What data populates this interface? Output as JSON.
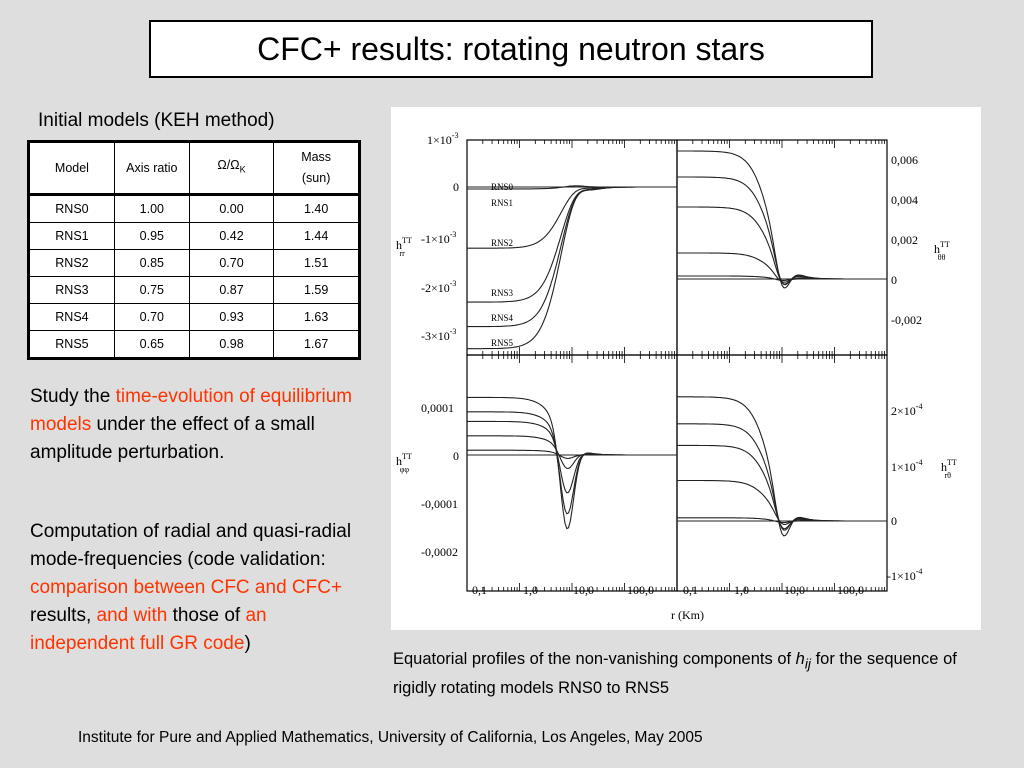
{
  "slide": {
    "title": "CFC+ results: rotating neutron stars",
    "footer": "Institute for Pure and Applied Mathematics, University of California, Los Angeles, May 2005"
  },
  "models": {
    "heading": "Initial models (KEH method)",
    "columns": {
      "model": "Model",
      "axis_ratio": "Axis ratio",
      "omega_omega": "Ω",
      "omega_slash": "/",
      "omega_base": "Ω",
      "omega_sub": "K",
      "mass_line1": "Mass",
      "mass_line2": "(sun)"
    },
    "rows": [
      {
        "model": "RNS0",
        "axis": "1.00",
        "omega": "0.00",
        "mass": "1.40"
      },
      {
        "model": "RNS1",
        "axis": "0.95",
        "omega": "0.42",
        "mass": "1.44"
      },
      {
        "model": "RNS2",
        "axis": "0.85",
        "omega": "0.70",
        "mass": "1.51"
      },
      {
        "model": "RNS3",
        "axis": "0.75",
        "omega": "0.87",
        "mass": "1.59"
      },
      {
        "model": "RNS4",
        "axis": "0.70",
        "omega": "0.93",
        "mass": "1.63"
      },
      {
        "model": "RNS5",
        "axis": "0.65",
        "omega": "0.98",
        "mass": "1.67"
      }
    ]
  },
  "text": {
    "p1_a": "Study the ",
    "p1_b": "time-evolution of equilibrium models",
    "p1_c": " under the effect of a small amplitude perturbation.",
    "p2_a": "Computation of radial and quasi-radial mode-frequencies (code validation: ",
    "p2_b": "comparison between CFC and CFC+",
    "p2_c": " results, ",
    "p2_d": "and with",
    "p2_e": " those of ",
    "p2_f": "an independent full GR code",
    "p2_g": ")",
    "highlight_color": "#ff3300"
  },
  "caption": {
    "a": "Equatorial profiles of the non-vanishing components of ",
    "h": "h",
    "ij": "ij",
    "b": " for the sequence of rigidly rotating models RNS0 to RNS5"
  },
  "figure": {
    "x_axis_label": "r (Km)",
    "x_ticks": [
      "0,1",
      "1,0",
      "10,0",
      "100,0"
    ],
    "panels": {
      "rr": {
        "label_h": "h",
        "label_sup": "TT",
        "label_sub": "rr",
        "y_ticks": [
          "1×10",
          "0",
          "-1×10",
          "-2×10",
          "-3×10"
        ],
        "y_exp": "-3",
        "series_labels": [
          "RNS0",
          "RNS1",
          "RNS2",
          "RNS3",
          "RNS4",
          "RNS5"
        ],
        "min_values": [
          0,
          -4e-05,
          -0.00125,
          -0.00235,
          -0.00285,
          -0.0033
        ],
        "peak_values": [
          0,
          3e-05,
          9e-05,
          0.00015,
          0.00019,
          0.00024
        ]
      },
      "thth": {
        "label_h": "h",
        "label_sup": "TT",
        "label_sub": "θθ",
        "y_ticks": [
          "0,006",
          "0,004",
          "0,002",
          "0",
          "-0,002"
        ]
      },
      "phph": {
        "label_h": "h",
        "label_sup": "TT",
        "label_sub": "φφ",
        "y_ticks": [
          "0,0001",
          "0",
          "-0,0001",
          "-0,0002"
        ]
      },
      "rth": {
        "label_h": "h",
        "label_sup": "TT",
        "label_sub": "rθ",
        "y_ticks": [
          "2×10",
          "1×10",
          "0",
          "-1×10"
        ],
        "y_exp": "-4"
      }
    }
  }
}
